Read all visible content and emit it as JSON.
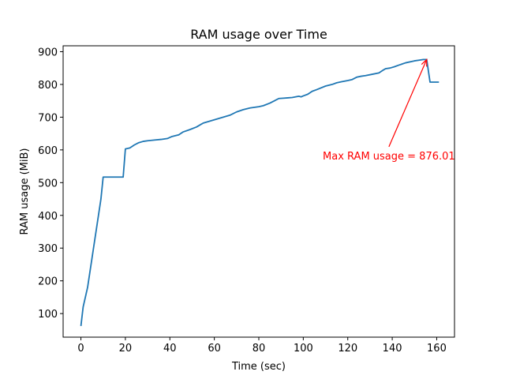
{
  "chart_data": {
    "type": "line",
    "title": "RAM usage over Time",
    "xlabel": "Time (sec)",
    "ylabel": "RAM usage (MiB)",
    "xlim": [
      -8,
      168
    ],
    "ylim": [
      28,
      918
    ],
    "xticks": [
      0,
      20,
      40,
      60,
      80,
      100,
      120,
      140,
      160
    ],
    "yticks": [
      100,
      200,
      300,
      400,
      500,
      600,
      700,
      800,
      900
    ],
    "grid": false,
    "line_color": "#1f77b4",
    "annotation": {
      "text": "Max RAM usage = 876.01",
      "color": "#ff0000",
      "point": [
        155.5,
        876.01
      ],
      "text_at": [
        138.5,
        583
      ]
    },
    "series": [
      {
        "x": [
          0,
          1,
          3,
          5,
          7,
          9,
          10,
          19,
          20,
          22,
          24,
          26,
          28,
          30,
          33,
          36,
          39,
          41,
          44,
          46,
          49,
          52,
          55,
          58,
          61,
          64,
          67,
          70,
          73,
          76,
          80,
          82,
          85,
          87,
          89,
          91,
          93,
          95,
          98,
          99,
          100,
          102,
          104,
          106,
          110,
          113,
          115,
          117,
          120,
          122,
          124,
          126,
          128,
          131,
          134,
          136,
          137,
          139,
          141,
          143,
          146,
          150,
          152,
          154,
          155.5,
          157,
          161
        ],
        "values": [
          62,
          120,
          180,
          270,
          360,
          450,
          517,
          517,
          603,
          606,
          615,
          622,
          626,
          628,
          630,
          632,
          635,
          641,
          646,
          655,
          662,
          670,
          682,
          688,
          694,
          700,
          706,
          716,
          723,
          728,
          732,
          735,
          743,
          750,
          757,
          758,
          759,
          760,
          764,
          762,
          765,
          770,
          779,
          784,
          795,
          800,
          805,
          808,
          812,
          815,
          822,
          825,
          827,
          831,
          835,
          844,
          848,
          850,
          854,
          859,
          866,
          872,
          874,
          876,
          876.01,
          807,
          807
        ]
      }
    ]
  }
}
